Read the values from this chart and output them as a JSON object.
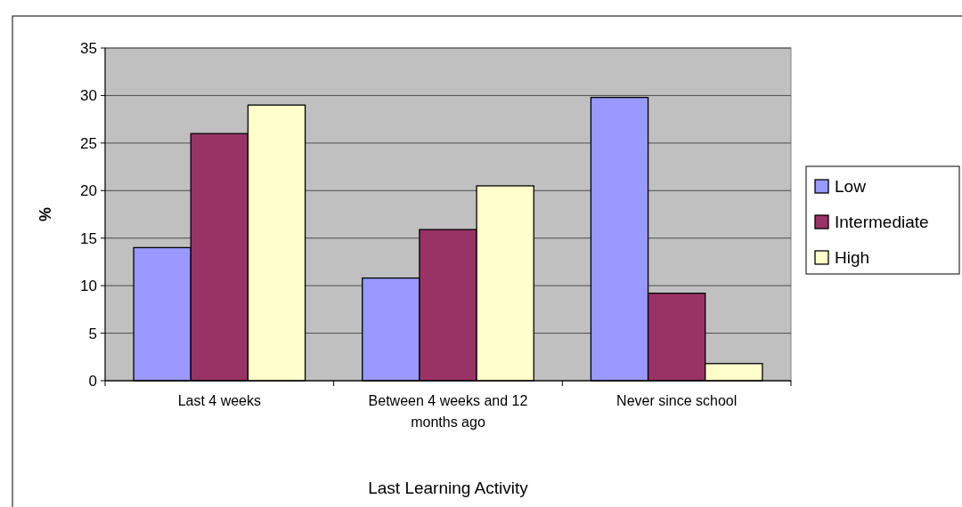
{
  "chart_data": {
    "type": "bar",
    "xlabel": "Last Learning Activity",
    "ylabel": "%",
    "categories": [
      "Last 4 weeks",
      "Between 4 weeks and 12 months ago",
      "Never since school"
    ],
    "series": [
      {
        "name": "Low",
        "color": "#9999ff",
        "values": [
          14,
          10.8,
          29.8
        ]
      },
      {
        "name": "Intermediate",
        "color": "#993366",
        "values": [
          26,
          15.9,
          9.2
        ]
      },
      {
        "name": "High",
        "color": "#ffffcc",
        "values": [
          29,
          20.5,
          1.8
        ]
      }
    ],
    "ylim": [
      0,
      35
    ],
    "yticks": [
      0,
      5,
      10,
      15,
      20,
      25,
      30,
      35
    ],
    "grid": "y",
    "legend": "right"
  }
}
